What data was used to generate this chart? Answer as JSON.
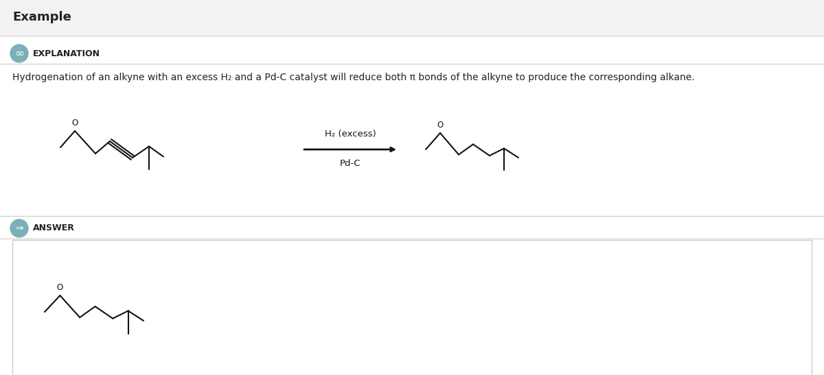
{
  "title": "Example",
  "title_bg": "#f0f0f0",
  "explanation_label": "EXPLANATION",
  "explanation_icon_color": "#7ab0b8",
  "answer_label": "ANSWER",
  "answer_icon_color": "#7ab0b8",
  "explanation_text": "Hydrogenation of an alkyne with an excess H₂ and a Pd-C catalyst will reduce both π bonds of the alkyne to produce the corresponding alkane.",
  "reagent_line1": "H₂ (excess)",
  "reagent_line2": "Pd-C",
  "bg_color": "#ffffff",
  "section_bg": "#f2f2f2",
  "answer_box_color": "#ffffff",
  "answer_box_border": "#cccccc",
  "line_color": "#cccccc",
  "text_color": "#222222",
  "molecule_color": "#111111",
  "font_size_title": 13,
  "font_size_section": 9,
  "font_size_text": 10,
  "font_size_molecule": 9
}
